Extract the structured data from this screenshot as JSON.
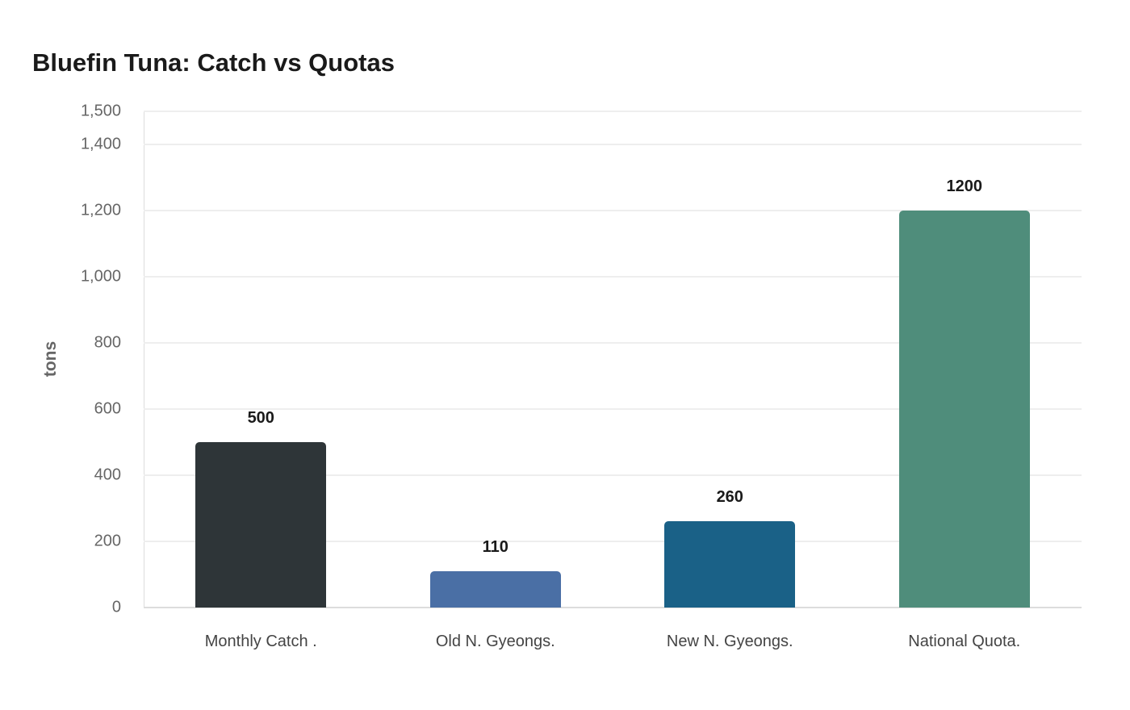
{
  "chart_data": {
    "type": "bar",
    "title": "Bluefin Tuna: Catch vs Quotas",
    "xlabel": "",
    "ylabel": "tons",
    "ylim": [
      0,
      1500
    ],
    "yticks": [
      0,
      200,
      400,
      600,
      800,
      1000,
      1200,
      1400,
      1500
    ],
    "ytick_labels": [
      "0",
      "200",
      "400",
      "600",
      "800",
      "1,000",
      "1,200",
      "1,400",
      "1,500"
    ],
    "grid": true,
    "legend": null,
    "categories": [
      "Monthly Catch .",
      "Old N. Gyeongs.",
      "New N. Gyeongs.",
      "National Quota."
    ],
    "values": [
      500,
      110,
      260,
      1200
    ],
    "value_labels": [
      "500",
      "110",
      "260",
      "1200"
    ],
    "colors": [
      "#2e3538",
      "#4a6fa5",
      "#1a6187",
      "#4f8d7b"
    ]
  }
}
